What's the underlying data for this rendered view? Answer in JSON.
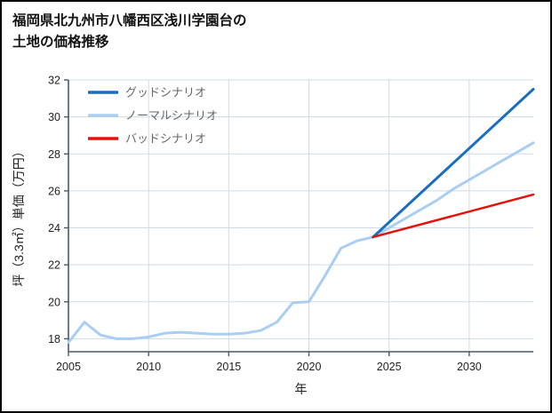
{
  "page": {
    "title_line1": "福岡県北九州市八幡西区浅川学園台の",
    "title_line2": "土地の価格推移"
  },
  "chart_data": {
    "type": "line",
    "title": "福岡県北九州市八幡西区浅川学園台の土地の価格推移",
    "xlabel": "年",
    "ylabel": "坪（3.3㎡）単価（万円）",
    "xlim": [
      2005,
      2034
    ],
    "ylim": [
      17.3,
      32
    ],
    "xticks": [
      2005,
      2010,
      2015,
      2020,
      2025,
      2030
    ],
    "yticks": [
      18,
      20,
      22,
      24,
      26,
      28,
      30,
      32
    ],
    "grid": true,
    "legend_position": "top-left-inside",
    "colors": {
      "grid": "#ccdcec",
      "axis": "#49596b",
      "tick_label": "#222222",
      "axis_label": "#222222",
      "legend_label": "#666666",
      "background": "#ffffff",
      "border": "#000000"
    },
    "series": [
      {
        "name": "グッドシナリオ",
        "color": "#1a6ec0",
        "width": 3,
        "x": [
          2024,
          2034
        ],
        "values": [
          23.5,
          31.5
        ]
      },
      {
        "name": "ノーマルシナリオ",
        "color": "#a9cef2",
        "width": 3,
        "x": [
          2005,
          2006,
          2007,
          2008,
          2009,
          2010,
          2011,
          2012,
          2013,
          2014,
          2015,
          2016,
          2017,
          2018,
          2019,
          2020,
          2021,
          2022,
          2023,
          2024,
          2025,
          2026,
          2027,
          2028,
          2029,
          2030,
          2031,
          2032,
          2033,
          2034
        ],
        "values": [
          17.8,
          18.9,
          18.2,
          18.0,
          18.0,
          18.1,
          18.3,
          18.35,
          18.3,
          18.25,
          18.25,
          18.3,
          18.45,
          18.9,
          19.95,
          20.0,
          21.4,
          22.9,
          23.3,
          23.5,
          24.0,
          24.5,
          25.0,
          25.5,
          26.1,
          26.6,
          27.1,
          27.6,
          28.1,
          28.6
        ]
      },
      {
        "name": "バッドシナリオ",
        "color": "#e3120b",
        "width": 2.5,
        "x": [
          2024,
          2034
        ],
        "values": [
          23.5,
          25.8
        ]
      }
    ]
  }
}
